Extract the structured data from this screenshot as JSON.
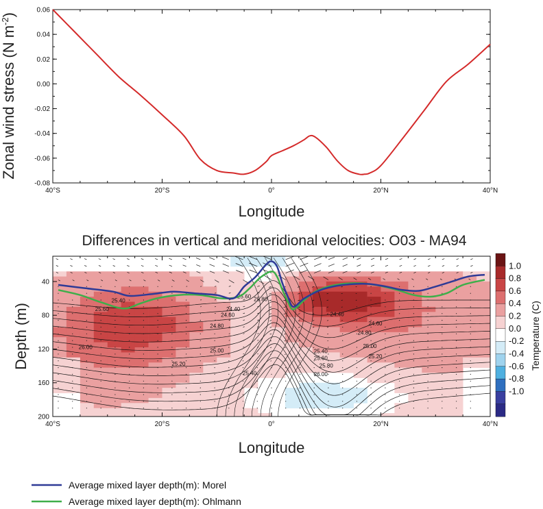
{
  "chart_data": [
    {
      "type": "line",
      "ylabel": "Zonal wind stress (N m",
      "ylabel_sup": "-2",
      "ylabel_close": ")",
      "xlabel": "Longitude",
      "xlim": [
        -40,
        40
      ],
      "ylim": [
        -0.08,
        0.06
      ],
      "x_ticks": [
        -40,
        -20,
        0,
        20,
        40
      ],
      "x_tick_labels": [
        "40°S",
        "20°S",
        "0°",
        "20°N",
        "40°N"
      ],
      "y_ticks": [
        0.06,
        0.04,
        0.02,
        0.0,
        -0.02,
        -0.04,
        -0.06,
        -0.08
      ],
      "y_tick_labels": [
        "0.06",
        "0.04",
        "0.02",
        "0.00",
        "-0.02",
        "-0.04",
        "-0.06",
        "-0.08"
      ],
      "series": [
        {
          "color": "#d42a2a",
          "x": [
            -40,
            -36,
            -32,
            -28,
            -24,
            -20,
            -16,
            -13,
            -10,
            -7,
            -5,
            -3,
            -1,
            0,
            2,
            4,
            6,
            7,
            8,
            10,
            12,
            14,
            16,
            17,
            18,
            20,
            24,
            28,
            32,
            36,
            40
          ],
          "y": [
            0.06,
            0.042,
            0.024,
            0.006,
            -0.009,
            -0.025,
            -0.042,
            -0.061,
            -0.07,
            -0.072,
            -0.073,
            -0.07,
            -0.063,
            -0.058,
            -0.054,
            -0.05,
            -0.045,
            -0.042,
            -0.043,
            -0.051,
            -0.062,
            -0.07,
            -0.073,
            -0.073,
            -0.072,
            -0.066,
            -0.044,
            -0.021,
            0.002,
            0.016,
            0.032
          ]
        }
      ]
    },
    {
      "type": "heatmap",
      "title": "Differences in vertical and meridional velocities: O03 - MA94",
      "xlabel": "Longitude",
      "ylabel": "Depth (m)",
      "xlim": [
        -40,
        40
      ],
      "ylim": [
        200,
        10
      ],
      "x_ticks": [
        -40,
        -20,
        0,
        20,
        40
      ],
      "x_tick_labels": [
        "40°S",
        "20°S",
        "0°",
        "20°N",
        "40°N"
      ],
      "y_ticks": [
        40,
        80,
        120,
        160,
        200
      ],
      "y_tick_labels": [
        "40",
        "80",
        "120",
        "160",
        "200"
      ],
      "colorbar": {
        "label": "Temperature (C)",
        "ticks": [
          1.0,
          0.8,
          0.6,
          0.4,
          0.2,
          0.0,
          -0.2,
          -0.4,
          -0.6,
          -0.8,
          -1.0
        ],
        "tick_labels": [
          "1.0",
          "0.8",
          "0.6",
          "0.4",
          "0.2",
          "0.0",
          "-0.2",
          "-0.4",
          "-0.6",
          "-0.8",
          "-1.0"
        ],
        "colors": [
          "#6b1414",
          "#a82a2a",
          "#c94545",
          "#dd6f6f",
          "#eaa0a0",
          "#f6d2d2",
          "#ffffff",
          "#d4ecf7",
          "#9fd3ee",
          "#4fb0e0",
          "#2f6fbf",
          "#3a3fa0",
          "#2b2a85"
        ]
      },
      "contour_labels": [
        {
          "text": "24.40",
          "x": 12,
          "y": 81
        },
        {
          "text": "24.60",
          "x": 19,
          "y": 92
        },
        {
          "text": "24.80",
          "x": 17,
          "y": 103
        },
        {
          "text": "25.00",
          "x": 18,
          "y": 119
        },
        {
          "text": "25.20",
          "x": 19,
          "y": 131
        },
        {
          "text": "25.40",
          "x": 9,
          "y": 125
        },
        {
          "text": "25.60",
          "x": 9,
          "y": 133
        },
        {
          "text": "25.80",
          "x": 10,
          "y": 142
        },
        {
          "text": "26.00",
          "x": 9,
          "y": 152
        },
        {
          "text": "24.40",
          "x": -7,
          "y": 75
        },
        {
          "text": "24.60",
          "x": -8,
          "y": 82
        },
        {
          "text": "24.80",
          "x": -10,
          "y": 95
        },
        {
          "text": "25.00",
          "x": -10,
          "y": 124
        },
        {
          "text": "25.20",
          "x": -17,
          "y": 140
        },
        {
          "text": "25.40",
          "x": -4,
          "y": 151
        },
        {
          "text": "25.60",
          "x": -5,
          "y": 60
        },
        {
          "text": "25.80",
          "x": -2,
          "y": 63
        },
        {
          "text": "26.00",
          "x": -34,
          "y": 120
        },
        {
          "text": "25.40",
          "x": -28,
          "y": 65
        },
        {
          "text": "25.60",
          "x": -31,
          "y": 75
        }
      ],
      "series": [
        {
          "name": "Average mixed layer depth(m): Morel",
          "color": "#2e3a96",
          "x": [
            -39,
            -34,
            -29,
            -26,
            -22,
            -18,
            -14,
            -10,
            -7,
            -5,
            -3,
            -1,
            0,
            1,
            2,
            3,
            4,
            6,
            9,
            12,
            15,
            18,
            21,
            24,
            27,
            30,
            33,
            36,
            39
          ],
          "y": [
            44,
            48,
            52,
            57,
            55,
            52,
            54,
            56,
            60,
            46,
            35,
            20,
            16,
            22,
            42,
            58,
            70,
            60,
            50,
            45,
            43,
            43,
            46,
            50,
            51,
            46,
            40,
            34,
            32
          ]
        },
        {
          "name": "Average mixed layer depth(m): Ohlmann",
          "color": "#3eae4a",
          "x": [
            -39,
            -35,
            -31,
            -27,
            -24,
            -21,
            -17,
            -13,
            -9,
            -6,
            -4,
            -2,
            0,
            1,
            2,
            3,
            4,
            6,
            8,
            11,
            15,
            19,
            23,
            26,
            29,
            32,
            35,
            39
          ],
          "y": [
            50,
            56,
            65,
            72,
            66,
            60,
            56,
            56,
            60,
            58,
            48,
            35,
            28,
            34,
            50,
            64,
            73,
            62,
            52,
            45,
            42,
            44,
            50,
            56,
            58,
            54,
            44,
            38
          ]
        }
      ]
    }
  ],
  "legend": {
    "morel": "Average mixed layer depth(m): Morel",
    "ohlmann": "Average mixed layer depth(m): Ohlmann"
  }
}
